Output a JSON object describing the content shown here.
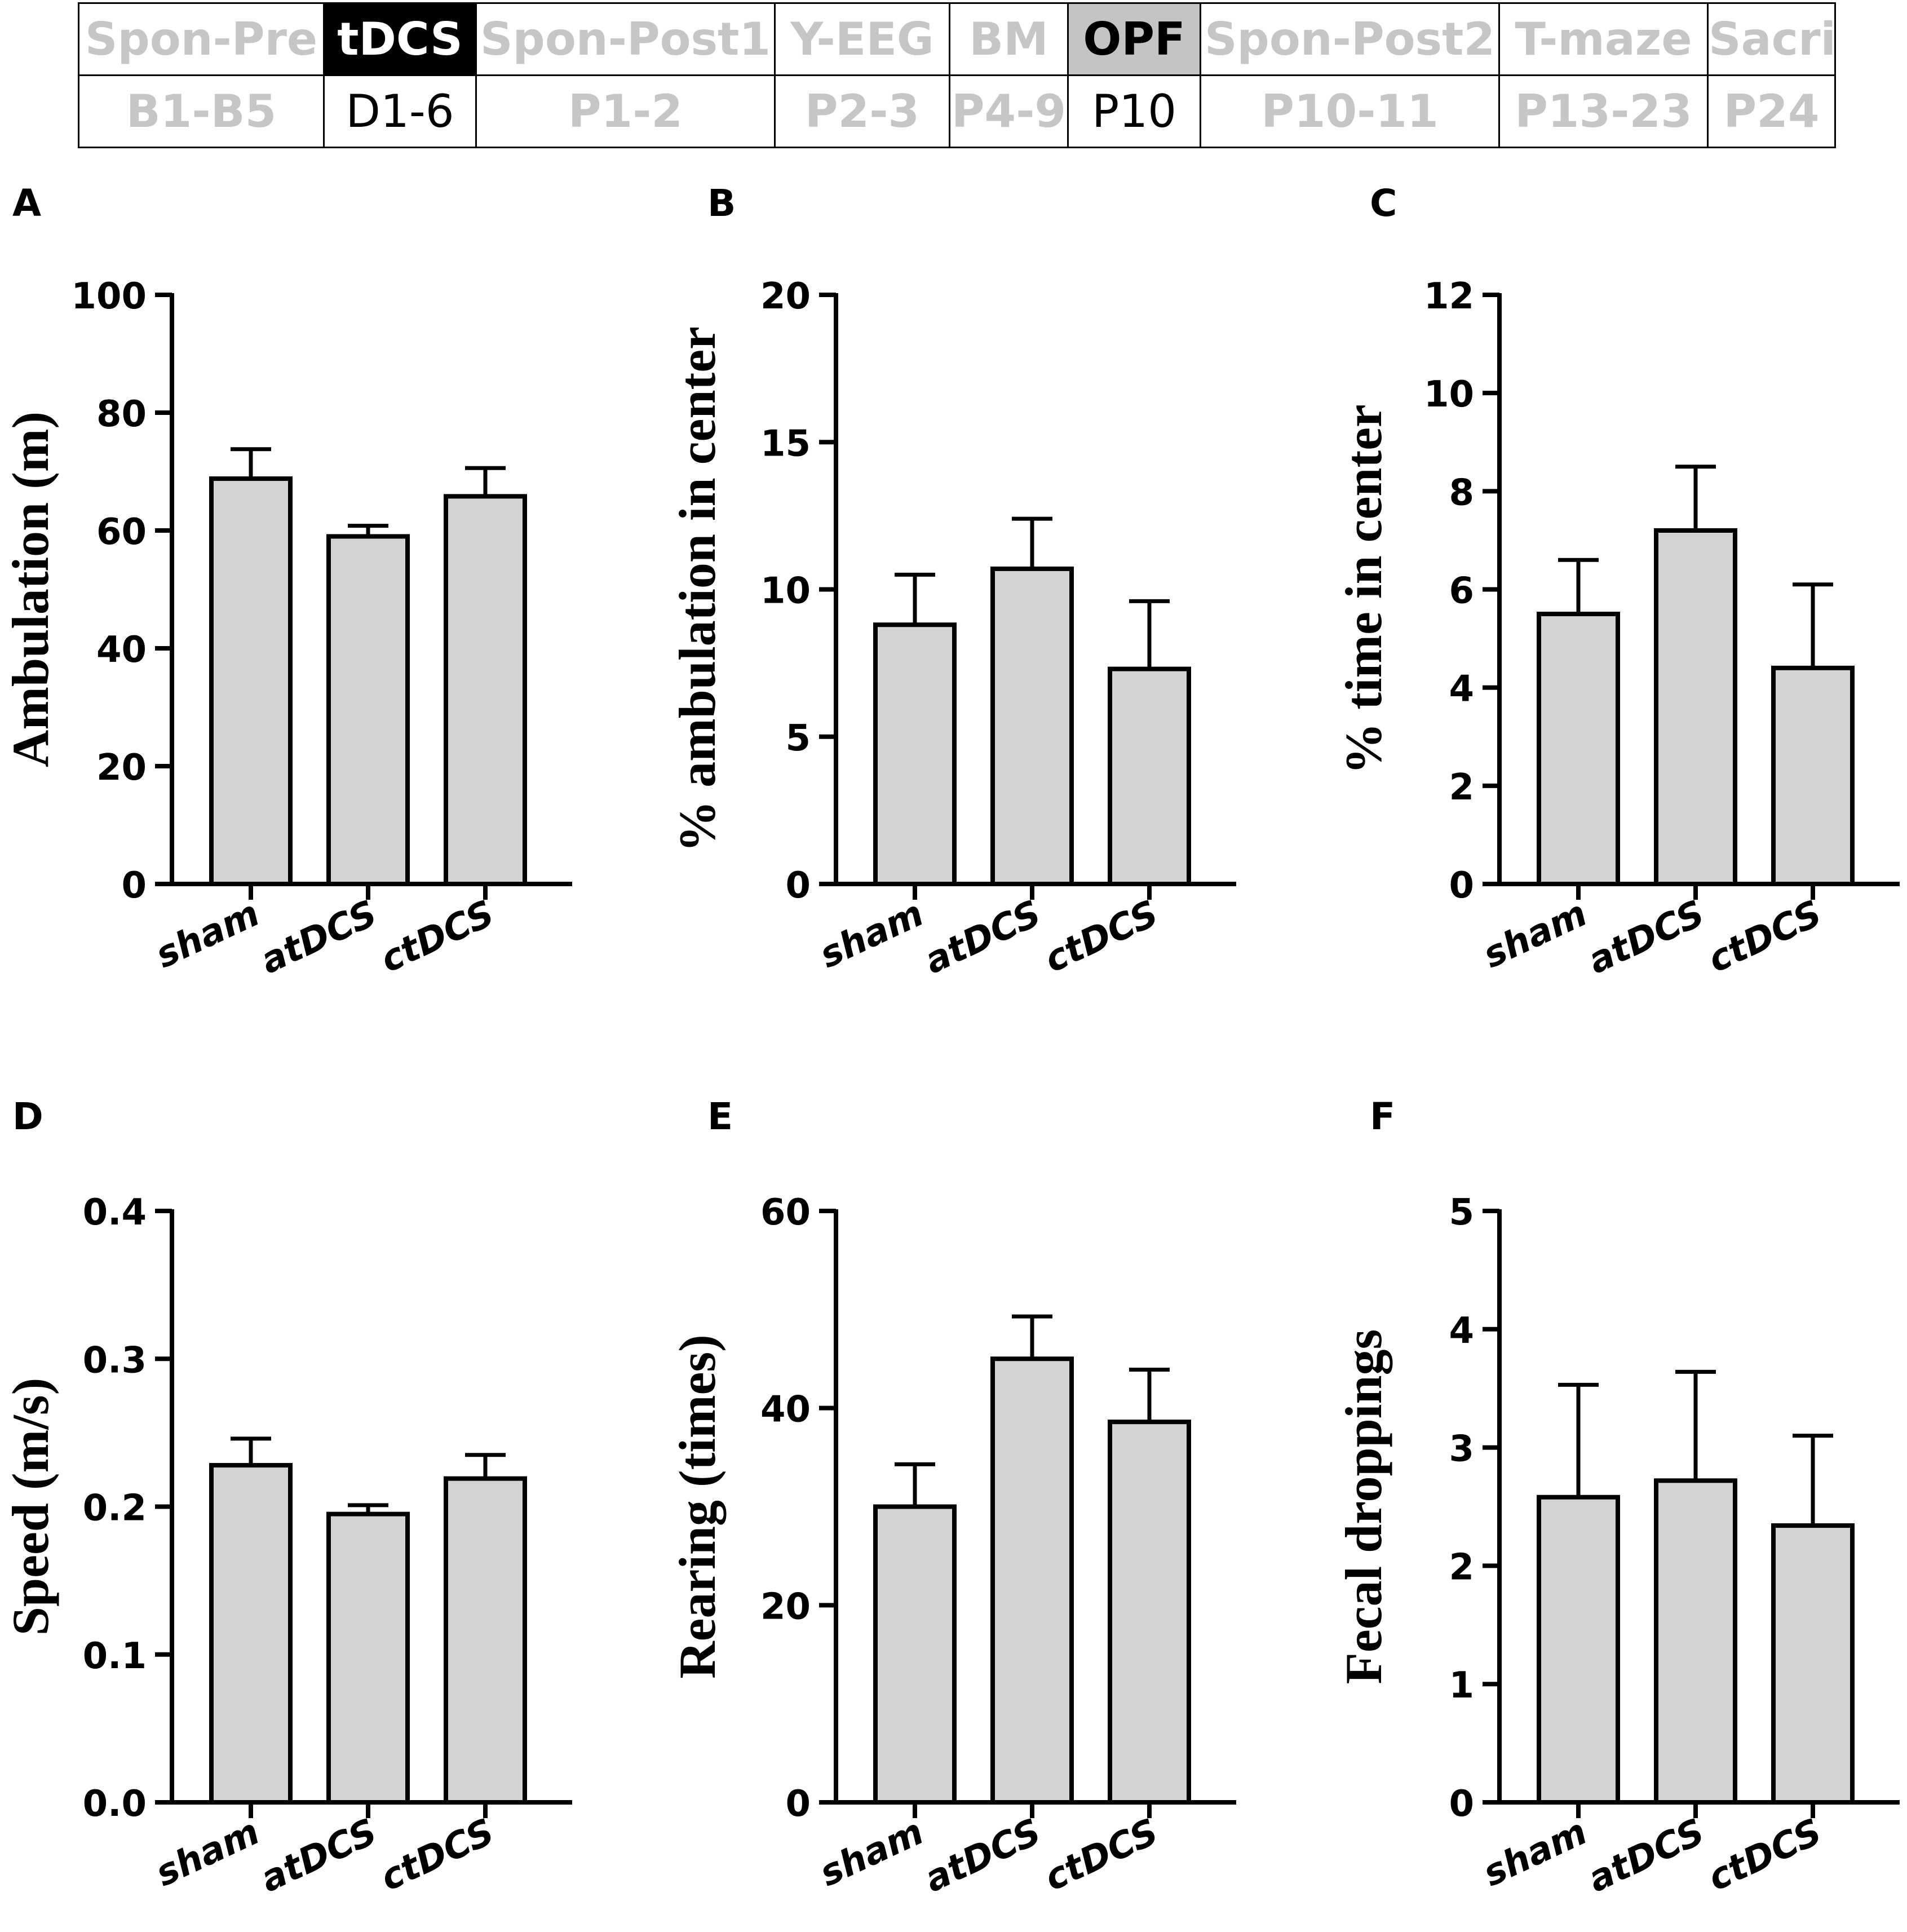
{
  "timeline": {
    "phases": [
      {
        "name": "Spon-Pre",
        "days": "B1-B5",
        "state": "inactive"
      },
      {
        "name": "tDCS",
        "days": "D1-6",
        "state": "black"
      },
      {
        "name": "Spon-Post1",
        "days": "P1-2",
        "state": "inactive"
      },
      {
        "name": "Y-EEG",
        "days": "P2-3",
        "state": "inactive"
      },
      {
        "name": "BM",
        "days": "P4-9",
        "state": "inactive"
      },
      {
        "name": "OPF",
        "days": "P10",
        "state": "gray"
      },
      {
        "name": "Spon-Post2",
        "days": "P10-11",
        "state": "inactive"
      },
      {
        "name": "T-maze",
        "days": "P13-23",
        "state": "inactive"
      },
      {
        "name": "Sacrify",
        "days": "P24",
        "state": "inactive"
      }
    ]
  },
  "colors": {
    "bar_fill": "#d3d3d3",
    "axis": "#000000",
    "inactive_text": "#c6c6c6",
    "highlight_gray": "#c4c4c4"
  },
  "chart_data": [
    {
      "panel": "A",
      "type": "bar",
      "categories": [
        "sham",
        "atDCS",
        "ctDCS"
      ],
      "values": [
        68.8,
        59.0,
        65.8
      ],
      "errors": [
        5.0,
        1.8,
        4.8
      ],
      "ylabel": "Ambulation (m)",
      "ylim": [
        0,
        100
      ],
      "yticks": [
        "0",
        "20",
        "40",
        "60",
        "80",
        "100"
      ]
    },
    {
      "panel": "B",
      "type": "bar",
      "categories": [
        "sham",
        "atDCS",
        "ctDCS"
      ],
      "values": [
        8.8,
        10.7,
        7.3
      ],
      "errors": [
        1.7,
        1.7,
        2.3
      ],
      "ylabel": "% ambulation in center",
      "ylim": [
        0,
        20
      ],
      "yticks": [
        "0",
        "5",
        "10",
        "15",
        "20"
      ]
    },
    {
      "panel": "C",
      "type": "bar",
      "categories": [
        "sham",
        "atDCS",
        "ctDCS"
      ],
      "values": [
        5.5,
        7.2,
        4.4
      ],
      "errors": [
        1.1,
        1.3,
        1.7
      ],
      "ylabel": "% time in center",
      "ylim": [
        0,
        12
      ],
      "yticks": [
        "0",
        "2",
        "4",
        "6",
        "8",
        "10",
        "12"
      ]
    },
    {
      "panel": "D",
      "type": "bar",
      "categories": [
        "sham",
        "atDCS",
        "ctDCS"
      ],
      "values": [
        0.228,
        0.195,
        0.219
      ],
      "errors": [
        0.018,
        0.006,
        0.016
      ],
      "ylabel": "Speed (m/s)",
      "ylim": [
        0,
        0.4
      ],
      "yticks": [
        "0.0",
        "0.1",
        "0.2",
        "0.3",
        "0.4"
      ]
    },
    {
      "panel": "E",
      "type": "bar",
      "categories": [
        "sham",
        "atDCS",
        "ctDCS"
      ],
      "values": [
        30.0,
        45.0,
        38.6
      ],
      "errors": [
        4.3,
        4.3,
        5.3
      ],
      "ylabel": "Rearing (times)",
      "ylim": [
        0,
        60
      ],
      "yticks": [
        "0",
        "20",
        "40",
        "60"
      ]
    },
    {
      "panel": "F",
      "type": "bar",
      "categories": [
        "sham",
        "atDCS",
        "ctDCS"
      ],
      "values": [
        2.58,
        2.72,
        2.34
      ],
      "errors": [
        0.95,
        0.92,
        0.76
      ],
      "ylabel": "Fecal droppings",
      "ylim": [
        0,
        5
      ],
      "yticks": [
        "0",
        "1",
        "2",
        "3",
        "4",
        "5"
      ]
    }
  ]
}
